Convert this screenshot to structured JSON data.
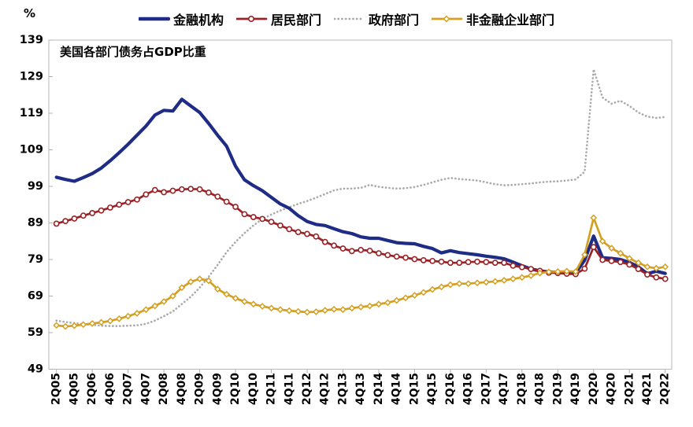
{
  "chart_data": {
    "type": "line",
    "title": "美国各部门债务占GDP比重",
    "unit_label": "%",
    "ylabel": "",
    "xlabel": "",
    "ylim": [
      49,
      139
    ],
    "y_ticks": [
      139,
      129,
      119,
      109,
      99,
      89,
      79,
      69,
      59,
      49
    ],
    "grid": false,
    "legend_position": "top",
    "x_label_every_n": 2,
    "categories": [
      "2Q05",
      "3Q05",
      "4Q05",
      "1Q06",
      "2Q06",
      "3Q06",
      "4Q06",
      "1Q07",
      "2Q07",
      "3Q07",
      "4Q07",
      "1Q08",
      "2Q08",
      "3Q08",
      "4Q08",
      "1Q09",
      "2Q09",
      "3Q09",
      "4Q09",
      "1Q10",
      "2Q10",
      "3Q10",
      "4Q10",
      "1Q11",
      "2Q11",
      "3Q11",
      "4Q11",
      "1Q12",
      "2Q12",
      "3Q12",
      "4Q12",
      "1Q13",
      "2Q13",
      "3Q13",
      "4Q13",
      "1Q14",
      "2Q14",
      "3Q14",
      "4Q14",
      "1Q15",
      "2Q15",
      "3Q15",
      "4Q15",
      "1Q16",
      "2Q16",
      "3Q16",
      "4Q16",
      "1Q17",
      "2Q17",
      "3Q17",
      "4Q17",
      "1Q18",
      "2Q18",
      "3Q18",
      "4Q18",
      "1Q19",
      "2Q19",
      "3Q19",
      "4Q19",
      "1Q20",
      "2Q20",
      "3Q20",
      "4Q20",
      "1Q21",
      "2Q21",
      "3Q21",
      "4Q21",
      "1Q22",
      "2Q22"
    ],
    "series": [
      {
        "key": "financial-institutions",
        "name": "金融机构",
        "color": "#1F2C85",
        "line_style": "solid-thick",
        "marker": "none",
        "values": [
          101.5,
          100.9,
          100.4,
          101.4,
          102.5,
          104.0,
          106.0,
          108.2,
          110.5,
          113.0,
          115.5,
          118.5,
          119.8,
          119.6,
          122.8,
          121.0,
          119.2,
          116.2,
          113.0,
          110.0,
          104.5,
          100.8,
          99.2,
          97.8,
          96.0,
          94.2,
          93.0,
          91.0,
          89.4,
          88.6,
          88.3,
          87.4,
          86.6,
          86.1,
          85.2,
          84.8,
          84.8,
          84.2,
          83.6,
          83.4,
          83.3,
          82.6,
          82.0,
          80.8,
          81.4,
          80.9,
          80.6,
          80.3,
          79.9,
          79.6,
          79.2,
          78.3,
          77.3,
          76.4,
          75.9,
          75.6,
          75.5,
          75.4,
          75.3,
          78.8,
          85.4,
          79.5,
          79.3,
          79.0,
          78.2,
          77.0,
          75.1,
          75.8,
          75.2
        ]
      },
      {
        "key": "household",
        "name": "居民部门",
        "color": "#9A2226",
        "line_style": "solid",
        "marker": "open-circle",
        "values": [
          88.8,
          89.5,
          90.2,
          91.0,
          91.7,
          92.4,
          93.2,
          94.0,
          94.7,
          95.4,
          96.8,
          98.0,
          97.4,
          97.8,
          98.2,
          98.3,
          98.2,
          97.3,
          96.2,
          94.8,
          93.4,
          91.4,
          90.6,
          90.1,
          89.3,
          88.3,
          87.3,
          86.5,
          86.0,
          85.3,
          83.8,
          82.8,
          82.0,
          81.3,
          81.6,
          81.4,
          80.7,
          80.2,
          79.8,
          79.5,
          79.1,
          78.8,
          78.6,
          78.4,
          78.1,
          78.1,
          78.3,
          78.4,
          78.3,
          78.1,
          78.1,
          77.3,
          76.9,
          76.4,
          75.9,
          75.4,
          75.3,
          75.1,
          75.0,
          76.5,
          82.4,
          78.9,
          78.6,
          78.3,
          77.6,
          76.4,
          74.9,
          74.1,
          73.7
        ]
      },
      {
        "key": "government",
        "name": "政府部门",
        "color": "#ABABAB",
        "line_style": "dotted",
        "marker": "none",
        "values": [
          62.3,
          61.9,
          61.6,
          61.3,
          61.1,
          60.9,
          60.8,
          60.8,
          60.9,
          61.0,
          61.4,
          62.3,
          63.5,
          64.8,
          66.8,
          68.8,
          71.3,
          74.3,
          77.5,
          81.0,
          83.8,
          86.2,
          88.3,
          90.1,
          91.3,
          92.4,
          93.3,
          94.2,
          95.0,
          95.9,
          96.9,
          97.9,
          98.4,
          98.4,
          98.6,
          99.4,
          98.9,
          98.6,
          98.4,
          98.5,
          98.8,
          99.4,
          100.1,
          100.8,
          101.3,
          101.0,
          100.8,
          100.6,
          100.1,
          99.6,
          99.3,
          99.4,
          99.6,
          99.8,
          100.1,
          100.3,
          100.4,
          100.6,
          100.9,
          103.0,
          131.0,
          123.3,
          121.6,
          122.4,
          121.0,
          119.2,
          118.1,
          117.7,
          118.0
        ]
      },
      {
        "key": "nonfinancial-corporate",
        "name": "非金融企业部门",
        "color": "#D5A021",
        "line_style": "solid",
        "marker": "open-diamond",
        "values": [
          61.0,
          60.7,
          60.9,
          61.2,
          61.5,
          61.8,
          62.2,
          62.8,
          63.5,
          64.3,
          65.3,
          66.3,
          67.5,
          69.0,
          71.3,
          72.9,
          73.7,
          73.2,
          70.9,
          69.5,
          68.4,
          67.5,
          66.8,
          66.2,
          65.7,
          65.3,
          65.0,
          64.8,
          64.6,
          64.7,
          65.1,
          65.4,
          65.3,
          65.7,
          66.0,
          66.3,
          66.8,
          67.2,
          67.8,
          68.5,
          69.2,
          70.0,
          70.8,
          71.5,
          72.1,
          72.4,
          72.4,
          72.6,
          72.8,
          73.0,
          73.3,
          73.7,
          74.1,
          74.6,
          75.3,
          75.6,
          75.7,
          75.8,
          75.7,
          80.3,
          90.4,
          84.0,
          82.1,
          80.7,
          79.3,
          78.1,
          77.0,
          76.6,
          77.0
        ]
      }
    ]
  }
}
